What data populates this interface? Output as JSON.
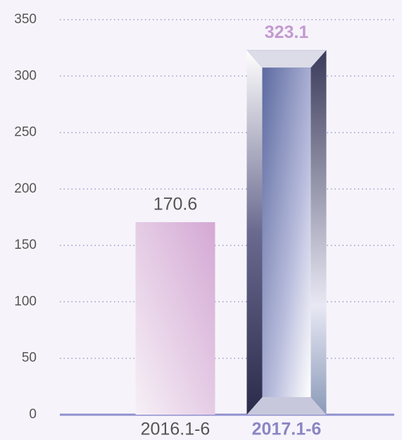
{
  "chart_data": {
    "type": "bar",
    "categories": [
      "2016.1-6",
      "2017.1-6"
    ],
    "values": [
      170.6,
      323.1
    ],
    "colors": [
      "#d4a8d4",
      "#5c6aa0"
    ],
    "highlight": 1,
    "ylim": [
      0,
      350
    ],
    "yticks": [
      0,
      50,
      100,
      150,
      200,
      250,
      300,
      350
    ],
    "grid": true
  }
}
